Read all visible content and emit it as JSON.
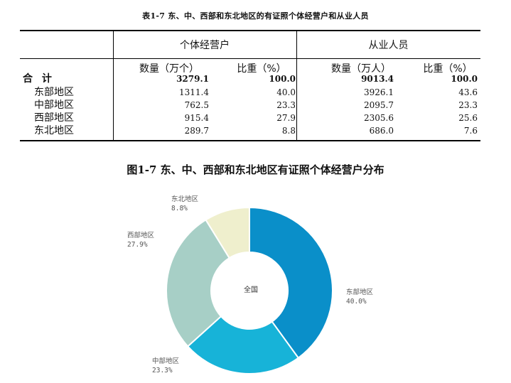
{
  "table": {
    "title": "表1-7  东、中、西部和东北地区的有证照个体经营户和从业人员",
    "group_headers": [
      "个体经营户",
      "从业人员"
    ],
    "column_headers": [
      "数量（万个）",
      "比重（%）",
      "数量（万人）",
      "比重（%）"
    ],
    "rows": [
      {
        "label": "合  计",
        "values": [
          "3279.1",
          "100.0",
          "9013.4",
          "100.0"
        ]
      },
      {
        "label": "东部地区",
        "values": [
          "1311.4",
          "40.0",
          "3926.1",
          "43.6"
        ]
      },
      {
        "label": "中部地区",
        "values": [
          "762.5",
          "23.3",
          "2095.7",
          "23.3"
        ]
      },
      {
        "label": "西部地区",
        "values": [
          "915.4",
          "27.9",
          "2305.6",
          "25.6"
        ]
      },
      {
        "label": "东北地区",
        "values": [
          "289.7",
          "8.8",
          "686.0",
          "7.6"
        ]
      }
    ]
  },
  "chart": {
    "title": "图1-7 东、中、西部和东北地区有证照个体经营户分布",
    "center_label": "全国"
  },
  "chart_data": {
    "type": "pie",
    "title": "图1-7 东、中、西部和东北地区有证照个体经营户分布",
    "center_label": "全国",
    "categories": [
      "东部地区",
      "中部地区",
      "西部地区",
      "东北地区"
    ],
    "values": [
      40.0,
      23.3,
      27.9,
      8.8
    ],
    "value_labels": [
      "40.0%",
      "23.3%",
      "27.9%",
      "8.8%"
    ],
    "colors": [
      "#0a8fc9",
      "#17b3d8",
      "#a7cfc6",
      "#efefcd"
    ],
    "donut": true,
    "start": "12 o'clock, clockwise"
  }
}
